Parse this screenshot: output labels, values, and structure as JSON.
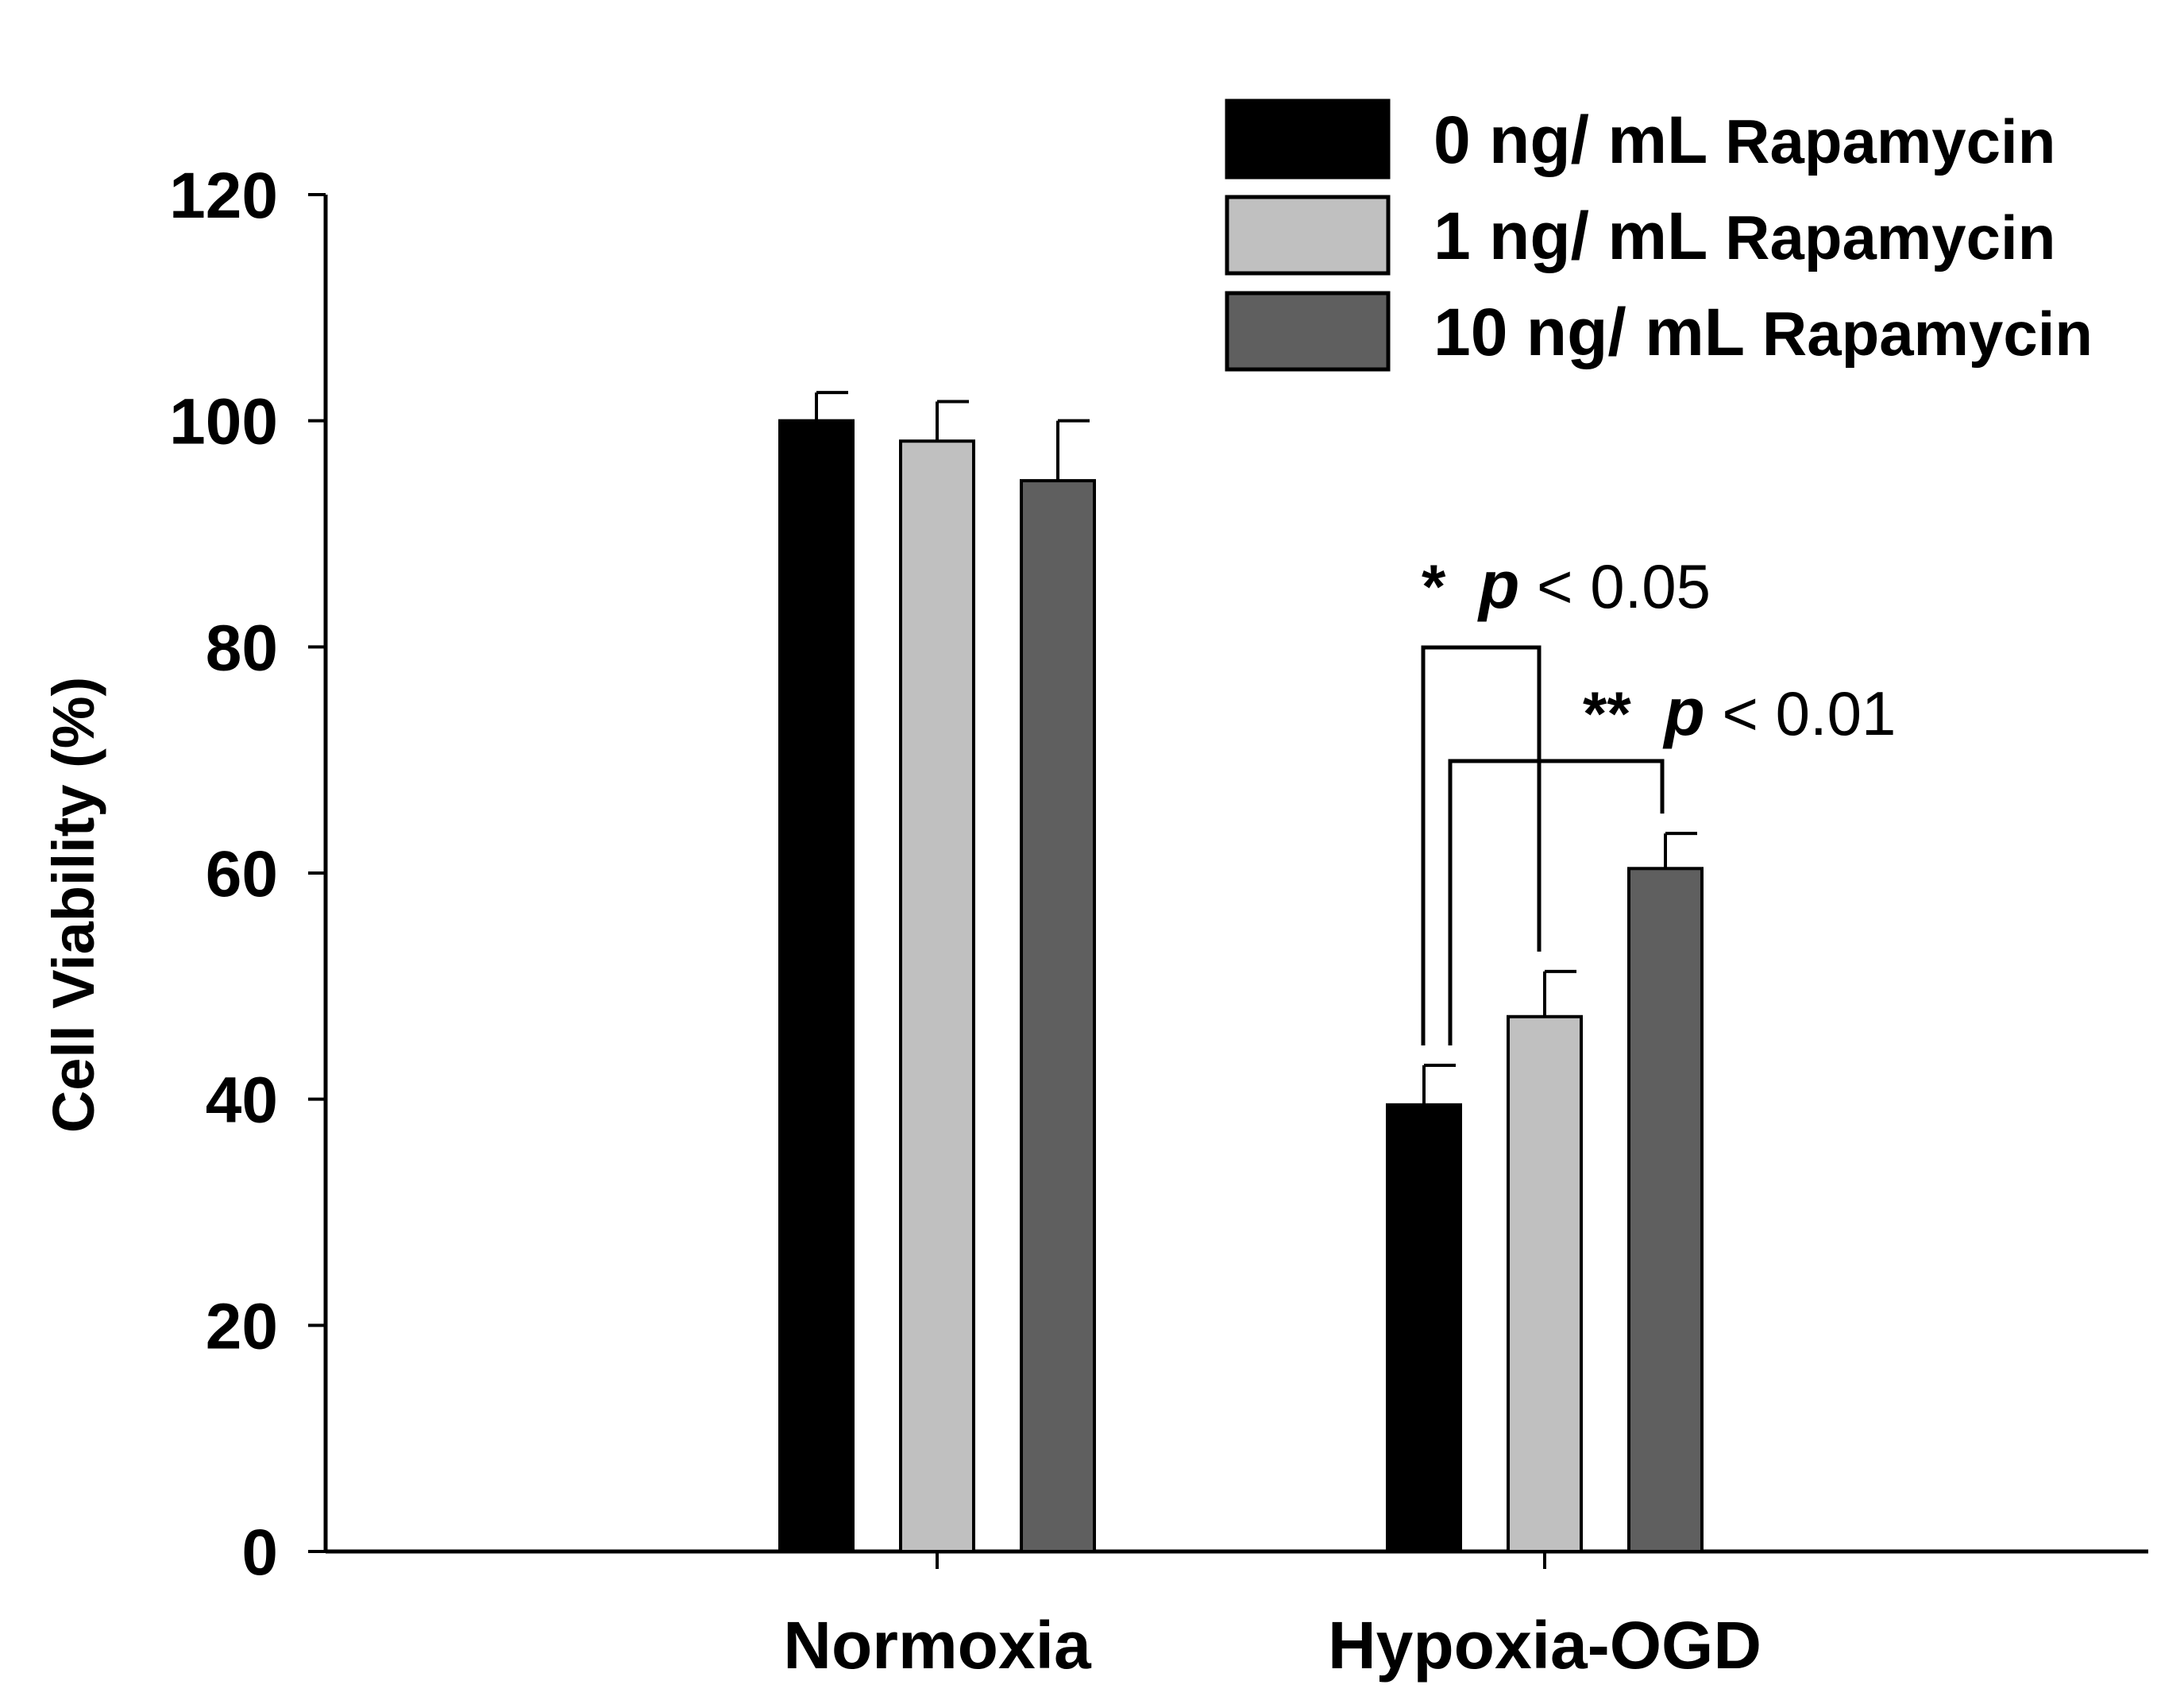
{
  "chart_data": {
    "type": "bar",
    "title": "",
    "xlabel": "",
    "ylabel": "Cell Viability (%)",
    "ylim": [
      0,
      120
    ],
    "yticks": [
      0,
      20,
      40,
      60,
      80,
      100,
      120
    ],
    "categories": [
      "Normoxia",
      "Hypoxia-OGD"
    ],
    "series": [
      {
        "name_main": "0 ng/ mL",
        "name_unit": "Rapamycin",
        "color": "#000000",
        "values": [
          100,
          39.5
        ],
        "errors": [
          2.5,
          3.5
        ]
      },
      {
        "name_main": "1 ng/ mL",
        "name_unit": "Rapamycin",
        "color": "#c0c0c0",
        "values": [
          98.2,
          47.3
        ],
        "errors": [
          3.5,
          4.0
        ]
      },
      {
        "name_main": "10 ng/ mL",
        "name_unit": "Rapamycin",
        "color": "#5f5f5f",
        "values": [
          94.7,
          60.4
        ],
        "errors": [
          5.3,
          3.1
        ]
      }
    ],
    "legend_position": "top-right",
    "annotations": [
      {
        "stars": "*",
        "p": "p",
        "rel": " < 0.05",
        "from_series": 0,
        "to_series": 1,
        "category": 1
      },
      {
        "stars": "**",
        "p": "p",
        "rel": " < 0.01",
        "from_series": 0,
        "to_series": 2,
        "category": 1
      }
    ]
  }
}
